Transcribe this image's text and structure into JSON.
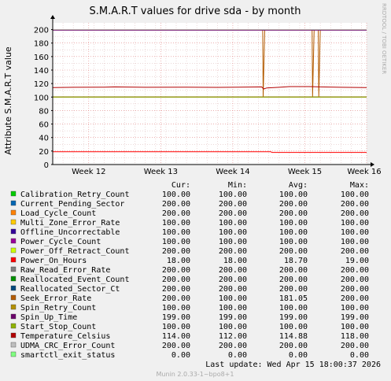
{
  "chart_data": {
    "type": "line",
    "title": "S.M.A.R.T values for drive sda - by month",
    "ylabel": "Attribute S.M.A.R.T value",
    "watermark": "RRDTOOL / TOBI OETIKER",
    "ylim": [
      0,
      210
    ],
    "xlim": [
      0,
      30.5
    ],
    "y_ticks": [
      "0",
      "20",
      "40",
      "60",
      "80",
      "100",
      "120",
      "140",
      "160",
      "180",
      "200"
    ],
    "x_ticks": [
      {
        "label": "Week 12",
        "day": 3.5
      },
      {
        "label": "Week 13",
        "day": 10.5
      },
      {
        "label": "Week 14",
        "day": 17.5
      },
      {
        "label": "Week 15",
        "day": 24.5
      },
      {
        "label": "Week 16",
        "day": 31.5
      }
    ],
    "series": [
      {
        "name": "Calibration_Retry_Count",
        "color": "#00cc00",
        "cur": "100.00",
        "min": "100.00",
        "avg": "100.00",
        "max": "100.00",
        "points": [
          [
            0,
            100
          ],
          [
            30.5,
            100
          ]
        ]
      },
      {
        "name": "Current_Pending_Sector",
        "color": "#0066b3",
        "cur": "200.00",
        "min": "200.00",
        "avg": "200.00",
        "max": "200.00",
        "points": [
          [
            0,
            200
          ],
          [
            30.5,
            200
          ]
        ]
      },
      {
        "name": "Load_Cycle_Count",
        "color": "#ff8000",
        "cur": "200.00",
        "min": "200.00",
        "avg": "200.00",
        "max": "200.00",
        "points": [
          [
            0,
            200
          ],
          [
            30.5,
            200
          ]
        ]
      },
      {
        "name": "Multi_Zone_Error_Rate",
        "color": "#ffcc00",
        "cur": "100.00",
        "min": "100.00",
        "avg": "100.00",
        "max": "100.00",
        "points": [
          [
            0,
            100
          ],
          [
            30.5,
            100
          ]
        ]
      },
      {
        "name": "Offline_Uncorrectable",
        "color": "#330099",
        "cur": "100.00",
        "min": "100.00",
        "avg": "100.00",
        "max": "100.00",
        "points": [
          [
            0,
            100
          ],
          [
            30.5,
            100
          ]
        ]
      },
      {
        "name": "Power_Cycle_Count",
        "color": "#990099",
        "cur": "100.00",
        "min": "100.00",
        "avg": "100.00",
        "max": "100.00",
        "points": [
          [
            0,
            100
          ],
          [
            30.5,
            100
          ]
        ]
      },
      {
        "name": "Power_Off_Retract_Count",
        "color": "#ccff00",
        "cur": "200.00",
        "min": "200.00",
        "avg": "200.00",
        "max": "200.00",
        "points": [
          [
            0,
            200
          ],
          [
            30.5,
            200
          ]
        ]
      },
      {
        "name": "Power_On_Hours",
        "color": "#ff0000",
        "cur": "18.00",
        "min": "18.00",
        "avg": "18.70",
        "max": "19.00",
        "points": [
          [
            0,
            19
          ],
          [
            21.2,
            19
          ],
          [
            21.3,
            18
          ],
          [
            30.5,
            18
          ]
        ]
      },
      {
        "name": "Raw_Read_Error_Rate",
        "color": "#808080",
        "cur": "200.00",
        "min": "200.00",
        "avg": "200.00",
        "max": "200.00",
        "points": [
          [
            0,
            200
          ],
          [
            30.5,
            200
          ]
        ]
      },
      {
        "name": "Reallocated_Event_Count",
        "color": "#008f00",
        "cur": "200.00",
        "min": "200.00",
        "avg": "200.00",
        "max": "200.00",
        "points": [
          [
            0,
            200
          ],
          [
            30.5,
            200
          ]
        ]
      },
      {
        "name": "Reallocated_Sector_Ct",
        "color": "#00487d",
        "cur": "200.00",
        "min": "200.00",
        "avg": "200.00",
        "max": "200.00",
        "points": [
          [
            0,
            200
          ],
          [
            30.5,
            200
          ]
        ]
      },
      {
        "name": "Seek_Error_Rate",
        "color": "#b35a00",
        "cur": "200.00",
        "min": "100.00",
        "avg": "181.05",
        "max": "200.00",
        "points": [
          [
            0,
            200
          ],
          [
            20.4,
            200
          ],
          [
            20.45,
            100
          ],
          [
            20.6,
            200
          ],
          [
            25.2,
            200
          ],
          [
            25.25,
            100
          ],
          [
            25.4,
            200
          ],
          [
            25.8,
            200
          ],
          [
            25.85,
            100
          ],
          [
            26.0,
            200
          ],
          [
            30.5,
            200
          ]
        ]
      },
      {
        "name": "Spin_Retry_Count",
        "color": "#b38f00",
        "cur": "100.00",
        "min": "100.00",
        "avg": "100.00",
        "max": "100.00",
        "points": [
          [
            0,
            100
          ],
          [
            30.5,
            100
          ]
        ]
      },
      {
        "name": "Spin_Up_Time",
        "color": "#6b006b",
        "cur": "199.00",
        "min": "199.00",
        "avg": "199.00",
        "max": "199.00",
        "points": [
          [
            0,
            199
          ],
          [
            30.5,
            199
          ]
        ]
      },
      {
        "name": "Start_Stop_Count",
        "color": "#8fb300",
        "cur": "100.00",
        "min": "100.00",
        "avg": "100.00",
        "max": "100.00",
        "points": [
          [
            0,
            100
          ],
          [
            30.5,
            100
          ]
        ]
      },
      {
        "name": "Temperature_Celsius",
        "color": "#b30000",
        "cur": "114.00",
        "min": "112.00",
        "avg": "114.88",
        "max": "118.00",
        "points": [
          [
            0,
            114
          ],
          [
            2,
            114.4
          ],
          [
            5,
            114.7
          ],
          [
            6,
            115
          ],
          [
            9,
            114.4
          ],
          [
            13,
            114.7
          ],
          [
            16,
            114.3
          ],
          [
            18,
            114.6
          ],
          [
            20.3,
            115
          ],
          [
            20.5,
            112
          ],
          [
            20.8,
            113.5
          ],
          [
            22,
            114.5
          ],
          [
            23,
            115.5
          ],
          [
            25,
            115.5
          ],
          [
            26,
            115
          ],
          [
            28,
            114.5
          ],
          [
            30.5,
            114
          ]
        ]
      },
      {
        "name": "UDMA_CRC_Error_Count",
        "color": "#bebebe",
        "cur": "200.00",
        "min": "200.00",
        "avg": "200.00",
        "max": "200.00",
        "points": [
          [
            0,
            200
          ],
          [
            30.5,
            200
          ]
        ]
      },
      {
        "name": "smartctl_exit_status",
        "color": "#80ff80",
        "cur": "0.00",
        "min": "0.00",
        "avg": "0.00",
        "max": "0.00",
        "points": [
          [
            0,
            0
          ],
          [
            30.5,
            0
          ]
        ]
      }
    ],
    "legend_headers": {
      "cur": "Cur:",
      "min": "Min:",
      "avg": "Avg:",
      "max": "Max:"
    },
    "last_update": "Last update:  Wed Apr 15 18:00:37 2026",
    "footer": "Munin 2.0.33-1~bpo8+1"
  }
}
